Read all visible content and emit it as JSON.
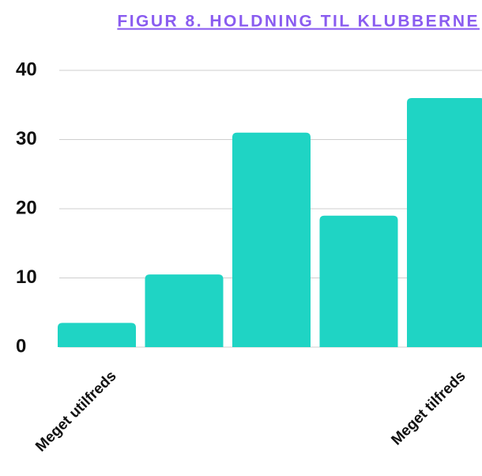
{
  "chart_data": {
    "type": "bar",
    "title": "FIGUR 8. HOLDNING TIL KLUBBERNE",
    "categories": [
      "Meget utilfreds",
      null,
      null,
      null,
      "Meget tilfreds"
    ],
    "values": [
      3.5,
      10.5,
      31,
      19,
      36
    ],
    "color": "#1fd4c4",
    "ylim": [
      0,
      40
    ],
    "yticks": [
      0,
      10,
      20,
      30,
      40
    ],
    "grid": true
  }
}
